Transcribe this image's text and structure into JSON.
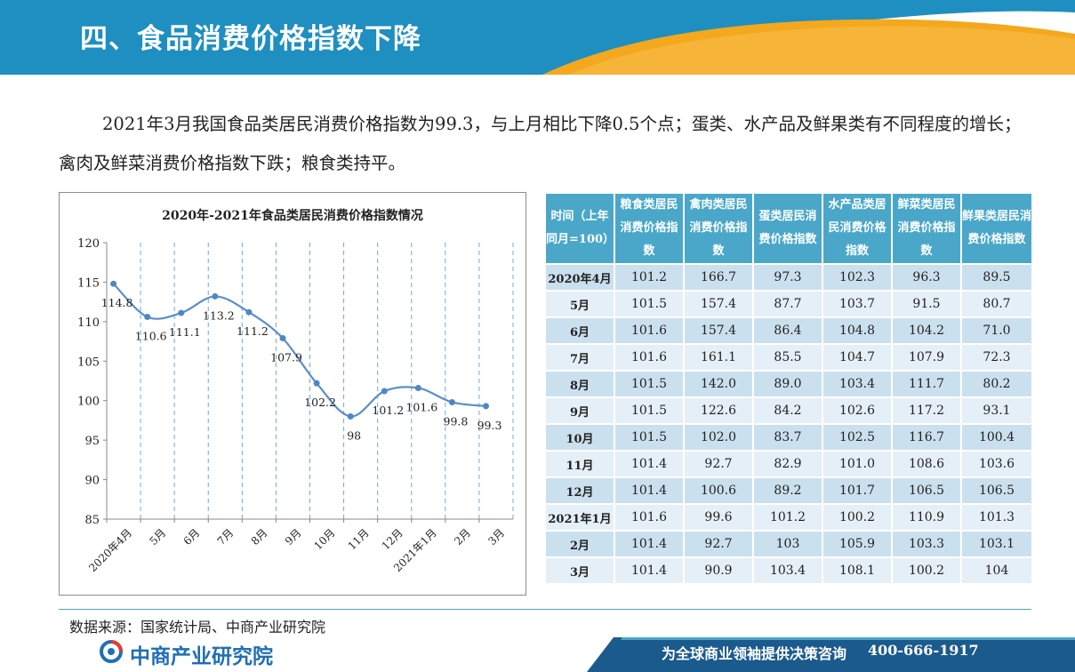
{
  "colors": {
    "header_blue": "#1e8fc0",
    "accent_orange": "#f4a81d",
    "table_header": "#4aa7c9",
    "line": "#5a8fc8",
    "footer_dark": "#1b5a8c"
  },
  "header": {
    "title": "四、食品消费价格指数下降"
  },
  "intro": {
    "text": "2021年3月我国食品类居民消费价格指数为99.3，与上月相比下降0.5个点；蛋类、水产品及鲜果类有不同程度的增长；禽肉及鲜菜消费价格指数下跌；粮食类持平。"
  },
  "chart_data": {
    "type": "line",
    "title": "2020年-2021年食品类居民消费价格指数情况",
    "categories": [
      "2020年4月",
      "5月",
      "6月",
      "7月",
      "8月",
      "9月",
      "10月",
      "11月",
      "12月",
      "2021年1月",
      "2月",
      "3月"
    ],
    "values": [
      114.8,
      110.6,
      111.1,
      113.2,
      111.2,
      107.9,
      102.2,
      98,
      101.2,
      101.6,
      99.8,
      99.3
    ],
    "data_labels": [
      "114.8",
      "110.6",
      "111.1",
      "113.2",
      "111.2",
      "107.9",
      "102.2",
      "98",
      "101.2",
      "101.6",
      "99.8",
      "99.3"
    ],
    "ylim": [
      85,
      120
    ],
    "yticks": [
      "85",
      "90",
      "95",
      "100",
      "105",
      "110",
      "115",
      "120"
    ],
    "grid": "vertical-dashed",
    "xlabel": "",
    "ylabel": ""
  },
  "table": {
    "headers": [
      "时间（上年同月=100）",
      "粮食类居民消费价格指数",
      "禽肉类居民消费价格指数",
      "蛋类居民消费价格指数",
      "水产品类居民消费价格指数",
      "鲜菜类居民消费价格指数",
      "鲜果类居民消费价格指数"
    ],
    "rows": [
      [
        "2020年4月",
        "101.2",
        "166.7",
        "97.3",
        "102.3",
        "96.3",
        "89.5"
      ],
      [
        "5月",
        "101.5",
        "157.4",
        "87.7",
        "103.7",
        "91.5",
        "80.7"
      ],
      [
        "6月",
        "101.6",
        "157.4",
        "86.4",
        "104.8",
        "104.2",
        "71.0"
      ],
      [
        "7月",
        "101.6",
        "161.1",
        "85.5",
        "104.7",
        "107.9",
        "72.3"
      ],
      [
        "8月",
        "101.5",
        "142.0",
        "89.0",
        "103.4",
        "111.7",
        "80.2"
      ],
      [
        "9月",
        "101.5",
        "122.6",
        "84.2",
        "102.6",
        "117.2",
        "93.1"
      ],
      [
        "10月",
        "101.5",
        "102.0",
        "83.7",
        "102.5",
        "116.7",
        "100.4"
      ],
      [
        "11月",
        "101.4",
        "92.7",
        "82.9",
        "101.0",
        "108.6",
        "103.6"
      ],
      [
        "12月",
        "101.4",
        "100.6",
        "89.2",
        "101.7",
        "106.5",
        "106.5"
      ],
      [
        "2021年1月",
        "101.6",
        "99.6",
        "101.2",
        "100.2",
        "110.9",
        "101.3"
      ],
      [
        "2月",
        "101.4",
        "92.7",
        "103",
        "105.9",
        "103.3",
        "103.1"
      ],
      [
        "3月",
        "101.4",
        "90.9",
        "103.4",
        "108.1",
        "100.2",
        "104"
      ]
    ]
  },
  "source": {
    "text": "数据来源：国家统计局、中商产业研究院"
  },
  "footer": {
    "logo_text": "中商产业研究院",
    "slogan": "为全球商业领袖提供决策咨询",
    "phone": "400-666-1917"
  }
}
